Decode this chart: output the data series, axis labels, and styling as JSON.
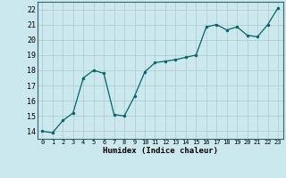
{
  "x": [
    0,
    1,
    2,
    3,
    4,
    5,
    6,
    7,
    8,
    9,
    10,
    11,
    12,
    13,
    14,
    15,
    16,
    17,
    18,
    19,
    20,
    21,
    22,
    23
  ],
  "y": [
    14.0,
    13.9,
    14.7,
    15.2,
    17.5,
    18.0,
    17.8,
    15.1,
    15.0,
    16.3,
    17.9,
    18.5,
    18.6,
    18.7,
    18.85,
    19.0,
    20.85,
    21.0,
    20.65,
    20.85,
    20.3,
    20.2,
    21.0,
    22.1
  ],
  "xlabel": "Humidex (Indice chaleur)",
  "xlim": [
    -0.5,
    23.5
  ],
  "ylim": [
    13.5,
    22.5
  ],
  "yticks": [
    14,
    15,
    16,
    17,
    18,
    19,
    20,
    21,
    22
  ],
  "xticks": [
    0,
    1,
    2,
    3,
    4,
    5,
    6,
    7,
    8,
    9,
    10,
    11,
    12,
    13,
    14,
    15,
    16,
    17,
    18,
    19,
    20,
    21,
    22,
    23
  ],
  "line_color": "#006666",
  "marker_color": "#006666",
  "bg_color": "#cce8ef",
  "grid_color": "#b0c8cc",
  "plot_bg_color": "#cce8ef"
}
